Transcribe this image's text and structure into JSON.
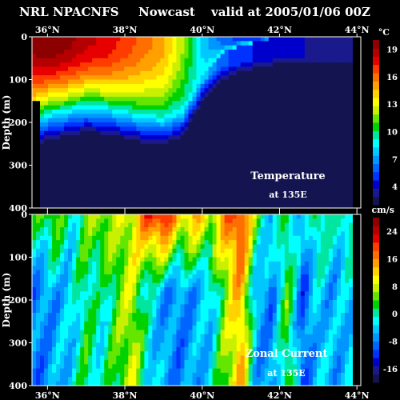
{
  "header": {
    "model": "NRL NPACNFS",
    "mode": "Nowcast",
    "valid": "valid at 2005/01/06 00Z"
  },
  "chart_data": [
    {
      "type": "heatmap",
      "title": "Temperature",
      "subtitle": "at 135E",
      "ylabel": "Depth (m)",
      "x_ticks": [
        "36°N",
        "38°N",
        "40°N",
        "42°N",
        "44°N"
      ],
      "x_tick_values": [
        36,
        38,
        40,
        42,
        44
      ],
      "xlim": [
        35.6,
        44.1
      ],
      "y_ticks": [
        "0",
        "100",
        "200",
        "300",
        "400"
      ],
      "y_tick_values": [
        0,
        100,
        200,
        300,
        400
      ],
      "ylim": [
        400,
        0
      ],
      "colorbar_unit": "°C",
      "colorbar_ticks": [
        "19",
        "16",
        "13",
        "10",
        "7",
        "4"
      ],
      "colorbar_tick_values": [
        19,
        16,
        13,
        10,
        7,
        4
      ],
      "colorbar_range": [
        2,
        20
      ],
      "thermocline_depth_by_latitude": {
        "latitudes": [
          35.6,
          36.0,
          36.5,
          37.0,
          37.5,
          38.0,
          38.5,
          39.0,
          39.5,
          40.0,
          40.5,
          41.0,
          41.5,
          42.0,
          42.5,
          43.0,
          43.5,
          44.0
        ],
        "surface_temp": [
          19.5,
          20,
          19.5,
          18.5,
          18,
          17,
          16,
          15,
          12,
          8,
          6,
          5,
          4.5,
          4,
          4,
          3.5,
          3.5,
          3.5
        ],
        "layer_depth": [
          200,
          180,
          170,
          160,
          165,
          175,
          185,
          190,
          170,
          90,
          40,
          20,
          10,
          0,
          0,
          0,
          0,
          0
        ]
      }
    },
    {
      "type": "heatmap",
      "title": "Zonal Current",
      "subtitle": "at 135E",
      "ylabel": "Depth (m)",
      "x_ticks": [
        "36°N",
        "38°N",
        "40°N",
        "42°N",
        "44°N"
      ],
      "x_tick_values": [
        36,
        38,
        40,
        42,
        44
      ],
      "xlim": [
        35.6,
        44.1
      ],
      "y_ticks": [
        "0",
        "100",
        "200",
        "300",
        "400"
      ],
      "y_tick_values": [
        0,
        100,
        200,
        300,
        400
      ],
      "ylim": [
        400,
        0
      ],
      "colorbar_unit": "cm/s",
      "colorbar_ticks": [
        "24",
        "16",
        "8",
        "0",
        "-8",
        "-16"
      ],
      "colorbar_tick_values": [
        24,
        16,
        8,
        0,
        -8,
        -16
      ],
      "colorbar_range": [
        -20,
        28
      ],
      "columns": {
        "latitudes": [
          35.8,
          36.2,
          36.6,
          37.0,
          37.4,
          37.8,
          38.2,
          38.6,
          39.0,
          39.4,
          39.8,
          40.2,
          40.6,
          41.0,
          41.4,
          41.8,
          42.2,
          42.6,
          43.0,
          43.4,
          43.8
        ],
        "surface": [
          2,
          6,
          -2,
          4,
          8,
          6,
          10,
          20,
          24,
          12,
          14,
          8,
          16,
          22,
          4,
          -4,
          2,
          -6,
          4,
          -2,
          2
        ],
        "deep": [
          -8,
          -6,
          -4,
          2,
          -2,
          4,
          8,
          -2,
          -6,
          -8,
          -6,
          -4,
          6,
          14,
          -6,
          -8,
          4,
          -10,
          -4,
          -6,
          -4
        ]
      }
    }
  ]
}
